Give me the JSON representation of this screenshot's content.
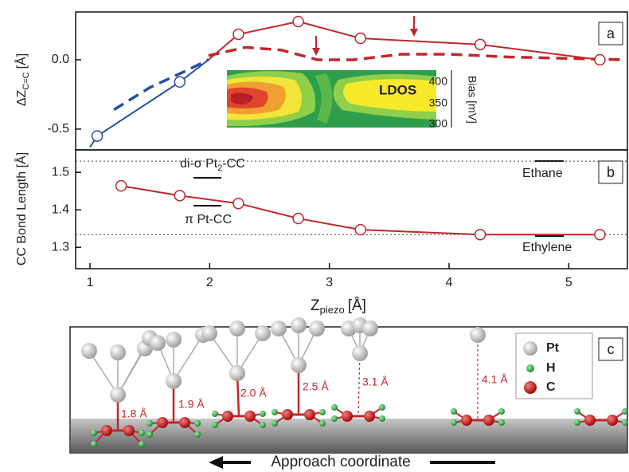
{
  "chart_data": [
    {
      "type": "line",
      "panel": "a",
      "ylabel": {
        "main": "ΔZ",
        "sub": "C=C",
        "unit": "[Å]"
      },
      "xlim": [
        0.88,
        5.49
      ],
      "ylim": [
        -0.65,
        0.345
      ],
      "yticks": [
        {
          "value": 0,
          "label": "0.0"
        },
        -0.5
      ],
      "inset": {
        "label": "LDOS",
        "axis_label": "Bias [mV]",
        "ticks": [
          "400",
          "350",
          "300"
        ]
      },
      "series": [
        {
          "color": "#2a4ea0",
          "style": "solid",
          "x": [
            1.0,
            1.06,
            1.75,
            1.99
          ],
          "values": [
            -0.63,
            -0.55,
            -0.16,
            0.0
          ]
        },
        {
          "color": "#2a4ea0",
          "style": "dashed",
          "x": [
            1.2,
            1.5,
            1.8,
            1.99
          ],
          "values": [
            -0.36,
            -0.2,
            -0.08,
            0.0
          ]
        },
        {
          "color": "#2a4ea0",
          "style": "none",
          "marker": "circle",
          "x": [
            1.06,
            1.75
          ],
          "values": [
            -0.55,
            -0.16
          ]
        },
        {
          "color": "#c0272d",
          "style": "solid",
          "x": [
            1.99,
            2.24,
            2.74,
            3.26,
            4.26,
            5.26
          ],
          "values": [
            0.0,
            0.184,
            0.276,
            0.155,
            0.11,
            0.0
          ]
        },
        {
          "color": "#c0272d",
          "style": "dashed",
          "x": [
            1.99,
            2.3,
            2.6,
            2.9,
            3.2,
            3.6,
            4.0,
            4.5,
            5.0,
            5.45
          ],
          "values": [
            0.03,
            0.09,
            0.07,
            0.0,
            0.0,
            0.04,
            0.04,
            0.02,
            0.01,
            0.0
          ]
        },
        {
          "color": "#c0272d",
          "style": "none",
          "marker": "circle",
          "x": [
            2.24,
            2.74,
            3.26,
            4.26,
            5.26
          ],
          "values": [
            0.184,
            0.276,
            0.155,
            0.11,
            0.0
          ]
        }
      ]
    },
    {
      "type": "line",
      "panel": "b",
      "ylabel": {
        "main": "CC Bond Length [Å]"
      },
      "xlabel": {
        "main": "Z",
        "sub": "piezo",
        "unit": "[Å]"
      },
      "xlim": [
        0.88,
        5.49
      ],
      "ylim": [
        1.243,
        1.56
      ],
      "xticks": [
        1,
        2,
        3,
        4,
        5
      ],
      "yticks": [
        1.3,
        1.4,
        1.5
      ],
      "hlines": [
        1.53,
        1.334
      ],
      "annotations": {
        "disigma": [
          "di-σ Pt",
          "2",
          "-CC"
        ],
        "pi": "π Pt-CC",
        "ethane": "Ethane",
        "ethylene": "Ethylene"
      },
      "series": [
        {
          "color": "#c0272d",
          "style": "solid",
          "marker": "circle",
          "x": [
            1.26,
            1.75,
            2.24,
            2.74,
            3.26,
            4.26,
            5.26
          ],
          "values": [
            1.464,
            1.438,
            1.417,
            1.377,
            1.347,
            1.334,
            1.334
          ]
        }
      ]
    }
  ],
  "diagram": {
    "label": "c",
    "distances": [
      "1.8 Å",
      "1.9 Å",
      "2.0 Å",
      "2.5 Å",
      "3.1 Å",
      "4.1 Å"
    ],
    "legend": [
      "Pt",
      "H",
      "C"
    ],
    "caption": "Approach coordinate"
  }
}
